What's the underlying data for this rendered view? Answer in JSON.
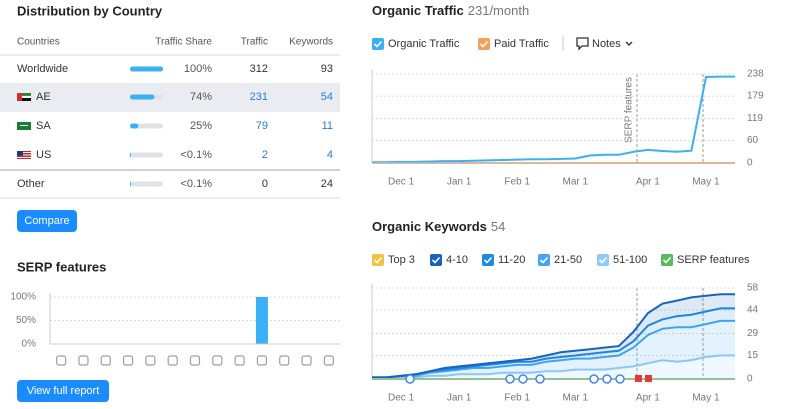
{
  "country_table": {
    "title": "Distribution by Country",
    "columns": [
      "Countries",
      "Traffic Share",
      "Traffic",
      "Keywords"
    ],
    "bar_color": "#3ab0f5",
    "rows": [
      {
        "country": "Worldwide",
        "share": 100,
        "share_label": "100%",
        "traffic": 312,
        "keywords": 93
      },
      {
        "country": "AE",
        "share": 74,
        "share_label": "74%",
        "traffic": 231,
        "keywords": 54
      },
      {
        "country": "SA",
        "share": 25,
        "share_label": "25%",
        "traffic": 79,
        "keywords": 11
      },
      {
        "country": "US",
        "share": 0.1,
        "share_label": "<0.1%",
        "traffic": 2,
        "keywords": 4
      },
      {
        "country": "Other",
        "share": 0.1,
        "share_label": "<0.1%",
        "traffic": 0,
        "keywords": 24
      }
    ]
  },
  "compare_button": "Compare",
  "serp_chart": {
    "type": "bar",
    "title": "SERP features",
    "categories": [
      null,
      null,
      null,
      null,
      null,
      null,
      null,
      null,
      null,
      null,
      null,
      null,
      null
    ],
    "values": [
      0,
      0,
      0,
      0,
      0,
      0,
      0,
      0,
      0,
      100,
      0,
      0,
      0
    ],
    "color": "#3ab0f5",
    "ylim": [
      0,
      100
    ],
    "yticks": [
      {
        "value": 0,
        "label": "0%"
      },
      {
        "value": 50,
        "label": "50%"
      },
      {
        "value": 100,
        "label": "100%"
      }
    ]
  },
  "view_report_button": "View full report",
  "traffic_chart": {
    "type": "line",
    "title": "Organic Traffic",
    "subtitle": "231/month",
    "notes": "Notes",
    "annotation": "SERP features",
    "categories": [
      null,
      null,
      "Dec 1",
      null,
      null,
      null,
      "Jan 1",
      null,
      null,
      null,
      "Feb 1",
      null,
      null,
      null,
      "Mar 1",
      null,
      null,
      null,
      null,
      "Apr 1",
      null,
      null,
      null,
      "May 1",
      null,
      null
    ],
    "series": [
      {
        "name": "Organic Traffic",
        "color": "#3ab0f5",
        "values": [
          2,
          2,
          3,
          3,
          4,
          5,
          5,
          6,
          7,
          8,
          9,
          10,
          10,
          11,
          12,
          20,
          22,
          22,
          30,
          35,
          32,
          30,
          33,
          230,
          231,
          231
        ]
      },
      {
        "name": "Paid Traffic",
        "color": "#f5a05a",
        "values": [
          0,
          0,
          0,
          0,
          0,
          0,
          0,
          0,
          0,
          0,
          0,
          0,
          0,
          0,
          0,
          0,
          0,
          0,
          0,
          0,
          0,
          0,
          0,
          0,
          0,
          0
        ]
      }
    ],
    "ylim": [
      0,
      238
    ],
    "yticks": [
      0,
      60,
      119,
      179,
      238
    ]
  },
  "keywords_chart": {
    "type": "stacked_area",
    "title": "Organic Keywords",
    "subtitle": "54",
    "categories": [
      null,
      null,
      "Dec 1",
      null,
      null,
      null,
      "Jan 1",
      null,
      null,
      null,
      "Feb 1",
      null,
      null,
      null,
      "Mar 1",
      null,
      null,
      null,
      null,
      "Apr 1",
      null,
      null,
      null,
      "May 1",
      null,
      null
    ],
    "series": [
      {
        "name": "Top 3",
        "color": "#f5c244",
        "values": [
          0,
          0,
          0,
          0,
          0,
          0,
          0,
          0,
          0,
          0,
          0,
          0,
          0,
          0,
          0,
          0,
          0,
          0,
          0,
          0,
          0,
          0,
          0,
          0,
          0,
          0
        ]
      },
      {
        "name": "4-10",
        "color": "#1565c0",
        "values": [
          0,
          0,
          0,
          0,
          0,
          1,
          1,
          1,
          1,
          1,
          1,
          2,
          2,
          3,
          3,
          3,
          3,
          3,
          6,
          8,
          10,
          10,
          11,
          10,
          9,
          9
        ]
      },
      {
        "name": "11-20",
        "color": "#1e88e5",
        "values": [
          0,
          0,
          0,
          1,
          1,
          1,
          1,
          1,
          2,
          2,
          2,
          2,
          2,
          2,
          2,
          3,
          3,
          3,
          4,
          6,
          6,
          7,
          8,
          8,
          8,
          8
        ]
      },
      {
        "name": "21-50",
        "color": "#42a5f5",
        "values": [
          1,
          1,
          1,
          1,
          2,
          3,
          3,
          4,
          4,
          4,
          5,
          5,
          6,
          7,
          7,
          7,
          8,
          8,
          12,
          18,
          20,
          22,
          21,
          21,
          22,
          22
        ]
      },
      {
        "name": "51-100",
        "color": "#90caf9",
        "values": [
          0,
          0,
          1,
          1,
          2,
          2,
          3,
          3,
          3,
          4,
          4,
          4,
          5,
          5,
          6,
          6,
          6,
          7,
          8,
          10,
          12,
          11,
          12,
          14,
          15,
          15
        ]
      },
      {
        "name": "SERP features",
        "color": "#5cb85c",
        "values": [
          0,
          0,
          0,
          0,
          0,
          0,
          0,
          0,
          0,
          0,
          0,
          0,
          0,
          0,
          0,
          0,
          0,
          0,
          0,
          0,
          0,
          0,
          0,
          0,
          0,
          0
        ]
      }
    ],
    "ylim": [
      0,
      58
    ],
    "yticks": [
      0,
      15,
      29,
      44,
      58
    ]
  }
}
